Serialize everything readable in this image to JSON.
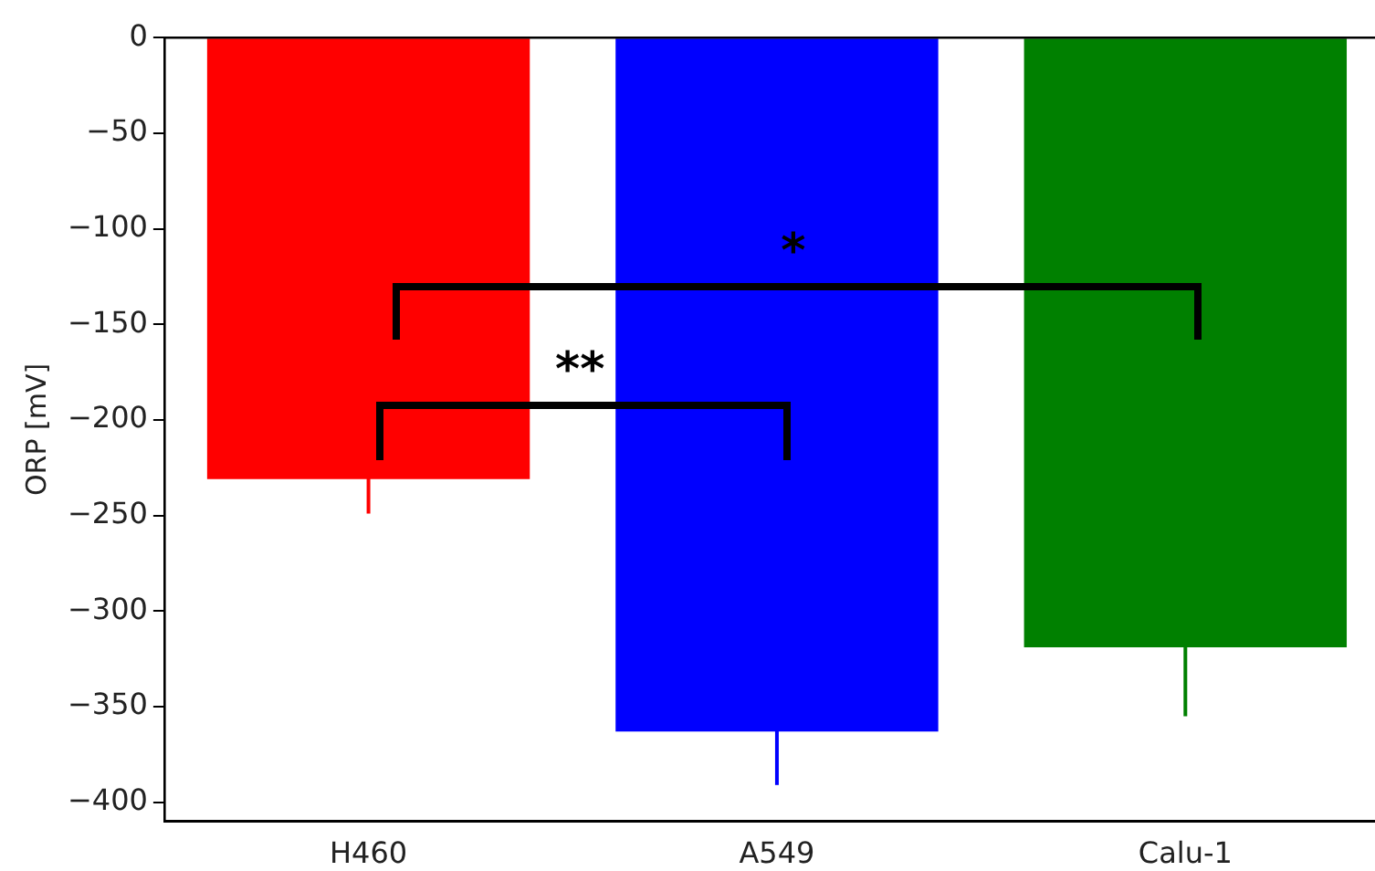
{
  "chart_data": {
    "type": "bar",
    "ylabel": "ORP [mV]",
    "categories": [
      "H460",
      "A549",
      "Calu-1"
    ],
    "values": [
      -231,
      -363,
      -319
    ],
    "colors": [
      "#ff0000",
      "#0000ff",
      "#008000"
    ],
    "errors": [
      18,
      28,
      36
    ],
    "ylim": [
      -410,
      0
    ],
    "yticks": [
      {
        "value": -400,
        "label": "−400"
      },
      {
        "value": -350,
        "label": "−350"
      },
      {
        "value": -300,
        "label": "−300"
      },
      {
        "value": -250,
        "label": "−250"
      },
      {
        "value": -200,
        "label": "−200"
      },
      {
        "value": -150,
        "label": "−150"
      },
      {
        "value": -100,
        "label": "−100"
      },
      {
        "value": -50,
        "label": "−50"
      },
      {
        "value": 0,
        "label": "0"
      }
    ],
    "annotations": [
      "**",
      "*"
    ],
    "grid": false,
    "legend": false
  }
}
